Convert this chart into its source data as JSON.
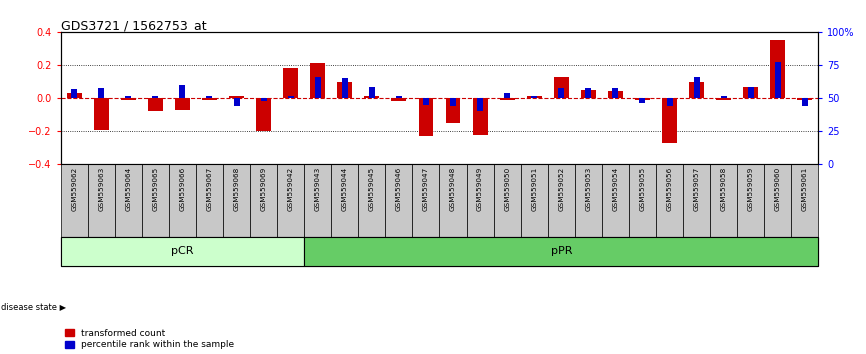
{
  "title": "GDS3721 / 1562753_at",
  "samples": [
    "GSM559062",
    "GSM559063",
    "GSM559064",
    "GSM559065",
    "GSM559066",
    "GSM559067",
    "GSM559068",
    "GSM559069",
    "GSM559042",
    "GSM559043",
    "GSM559044",
    "GSM559045",
    "GSM559046",
    "GSM559047",
    "GSM559048",
    "GSM559049",
    "GSM559050",
    "GSM559051",
    "GSM559052",
    "GSM559053",
    "GSM559054",
    "GSM559055",
    "GSM559056",
    "GSM559057",
    "GSM559058",
    "GSM559059",
    "GSM559060",
    "GSM559061"
  ],
  "red_values": [
    0.03,
    -0.19,
    -0.01,
    -0.08,
    -0.07,
    -0.01,
    0.01,
    -0.2,
    0.18,
    0.21,
    0.1,
    0.01,
    -0.02,
    -0.23,
    -0.15,
    -0.22,
    -0.01,
    0.01,
    0.13,
    0.05,
    0.04,
    -0.01,
    -0.27,
    0.1,
    -0.01,
    0.07,
    0.35,
    -0.01
  ],
  "blue_values": [
    0.055,
    0.06,
    0.01,
    0.01,
    0.08,
    0.01,
    -0.05,
    -0.02,
    0.01,
    0.13,
    0.12,
    0.07,
    0.01,
    -0.04,
    -0.05,
    -0.08,
    0.03,
    0.01,
    0.06,
    0.06,
    0.06,
    -0.03,
    -0.05,
    0.13,
    0.01,
    0.07,
    0.22,
    -0.05
  ],
  "pCR_count": 9,
  "pPR_count": 19,
  "ylim": [
    -0.4,
    0.4
  ],
  "y_right_ticks": [
    0,
    25,
    50,
    75,
    100
  ],
  "y_right_labels": [
    "0",
    "25",
    "50",
    "75",
    "100%"
  ],
  "y_left_ticks": [
    -0.4,
    -0.2,
    0.0,
    0.2,
    0.4
  ],
  "dotted_lines": [
    -0.2,
    0.2
  ],
  "red_color": "#cc0000",
  "blue_color": "#0000cc",
  "pCR_color": "#ccffcc",
  "pPR_color": "#66cc66",
  "bar_bg": "#c8c8c8",
  "bar_width": 0.55,
  "blue_bar_width": 0.22
}
